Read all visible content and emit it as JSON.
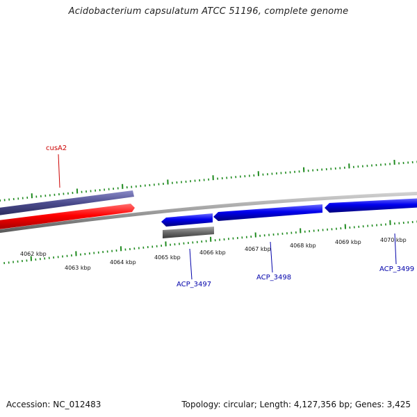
{
  "title": "Acidobacterium capsulatum ATCC 51196, complete genome",
  "footer": {
    "accession": "Accession: NC_012483",
    "summary": "Topology: circular; Length: 4,127,356 bp; Genes: 3,425"
  },
  "tick_labels": [
    "4062 kbp",
    "4063 kbp",
    "4064 kbp",
    "4065 kbp",
    "4066 kbp",
    "4067 kbp",
    "4068 kbp",
    "4069 kbp",
    "4070 kbp"
  ],
  "genes": [
    {
      "name": "cusA2",
      "color": "#cc0000",
      "strand": "forward"
    },
    {
      "name": "ACP_3497",
      "color": "#0000aa",
      "strand": "reverse"
    },
    {
      "name": "ACP_3498",
      "color": "#0000aa",
      "strand": "reverse"
    },
    {
      "name": "ACP_3499",
      "color": "#0000aa",
      "strand": "reverse"
    }
  ],
  "colors": {
    "backbone": "#8c8c8c",
    "forward_cds": "#ff0000",
    "reverse_cds": "#0000ee",
    "forward_gene": "#4a4a8c",
    "reverse_gene": "#666666",
    "ticks": "#1e8a1e"
  }
}
